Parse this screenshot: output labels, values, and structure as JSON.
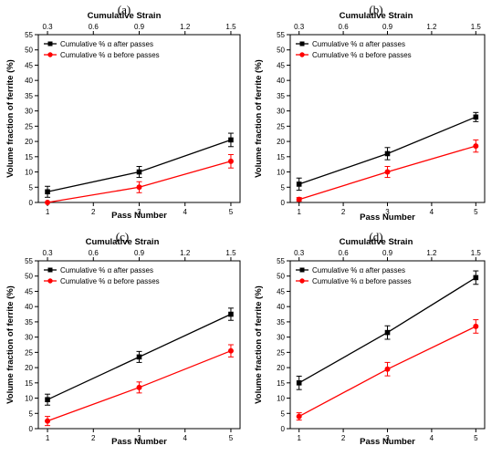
{
  "chart_data": [
    {
      "type": "line",
      "panel_label": "(a)",
      "x": [
        1,
        3,
        5
      ],
      "xlabel": "Pass Number",
      "xlim": [
        0.8,
        5.2
      ],
      "xticks": [
        1,
        2,
        3,
        4,
        5
      ],
      "top_axis": {
        "label": "Cumulative Strain",
        "ticks": [
          "0.3",
          "0.6",
          "0.9",
          "1.2",
          "1.5"
        ],
        "values": [
          0.3,
          0.6,
          0.9,
          1.2,
          1.5
        ]
      },
      "ylabel": "Volume fraction of ferrite (%)",
      "ylim": [
        0,
        55
      ],
      "yticks": [
        0,
        5,
        10,
        15,
        20,
        25,
        30,
        35,
        40,
        45,
        50,
        55
      ],
      "legend_position": "top-left",
      "series": [
        {
          "name": "Cumulative % α after passes",
          "color": "#000000",
          "values": [
            3.5,
            10,
            20.5
          ],
          "errors": [
            1.8,
            1.8,
            2.2
          ]
        },
        {
          "name": "Cumulative % α before passes",
          "color": "#ff0000",
          "values": [
            0,
            5,
            13.5
          ],
          "errors": [
            0,
            1.8,
            2.2
          ]
        }
      ]
    },
    {
      "type": "line",
      "panel_label": "(b)",
      "x": [
        1,
        3,
        5
      ],
      "xlabel": "Pass Number",
      "xlim": [
        0.8,
        5.2
      ],
      "xticks": [
        1,
        2,
        3,
        4,
        5
      ],
      "top_axis": {
        "label": "Cumulative Strain",
        "ticks": [
          "0.3",
          "0.6",
          "0.9",
          "1.2",
          "1.5"
        ],
        "values": [
          0.3,
          0.6,
          0.9,
          1.2,
          1.5
        ]
      },
      "ylabel": "Volume fraction of ferrite (%)",
      "ylim": [
        0,
        55
      ],
      "yticks": [
        0,
        5,
        10,
        15,
        20,
        25,
        30,
        35,
        40,
        45,
        50,
        55
      ],
      "legend_position": "top-left",
      "series": [
        {
          "name": "Cumulative % α after passes",
          "color": "#000000",
          "values": [
            6,
            16,
            28
          ],
          "errors": [
            2,
            2,
            1.5
          ]
        },
        {
          "name": "Cumulative % α before passes",
          "color": "#ff0000",
          "values": [
            1,
            10,
            18.5
          ],
          "errors": [
            0.6,
            1.8,
            2
          ]
        }
      ]
    },
    {
      "type": "line",
      "panel_label": "(c)",
      "x": [
        1,
        3,
        5
      ],
      "xlabel": "Pass Number",
      "xlim": [
        0.8,
        5.2
      ],
      "xticks": [
        1,
        2,
        3,
        4,
        5
      ],
      "top_axis": {
        "label": "Cumulative Strain",
        "ticks": [
          "0.3",
          "0.6",
          "0.9",
          "1.2",
          "1.5"
        ],
        "values": [
          0.3,
          0.6,
          0.9,
          1.2,
          1.5
        ]
      },
      "ylabel": "Volume fraction of ferrite (%)",
      "ylim": [
        0,
        55
      ],
      "yticks": [
        0,
        5,
        10,
        15,
        20,
        25,
        30,
        35,
        40,
        45,
        50,
        55
      ],
      "legend_position": "top-left",
      "series": [
        {
          "name": "Cumulative % α after passes",
          "color": "#000000",
          "values": [
            9.5,
            23.5,
            37.5
          ],
          "errors": [
            1.8,
            1.8,
            2
          ]
        },
        {
          "name": "Cumulative % α before passes",
          "color": "#ff0000",
          "values": [
            2.5,
            13.5,
            25.5
          ],
          "errors": [
            1.5,
            1.8,
            2
          ]
        }
      ]
    },
    {
      "type": "line",
      "panel_label": "(d)",
      "x": [
        1,
        3,
        5
      ],
      "xlabel": "Pass Number",
      "xlim": [
        0.8,
        5.2
      ],
      "xticks": [
        1,
        2,
        3,
        4,
        5
      ],
      "top_axis": {
        "label": "Cumulative Strain",
        "ticks": [
          "0.3",
          "0.6",
          "0.9",
          "1.2",
          "1.5"
        ],
        "values": [
          0.3,
          0.6,
          0.9,
          1.2,
          1.5
        ]
      },
      "ylabel": "Volume fraction of ferrite (%)",
      "ylim": [
        0,
        55
      ],
      "yticks": [
        0,
        5,
        10,
        15,
        20,
        25,
        30,
        35,
        40,
        45,
        50,
        55
      ],
      "legend_position": "top-left",
      "series": [
        {
          "name": "Cumulative % α after passes",
          "color": "#000000",
          "values": [
            15,
            31.5,
            49.5
          ],
          "errors": [
            2.2,
            2.2,
            2.2
          ]
        },
        {
          "name": "Cumulative % α before passes",
          "color": "#ff0000",
          "values": [
            4,
            19.5,
            33.5
          ],
          "errors": [
            1.2,
            2.2,
            2.2
          ]
        }
      ]
    }
  ]
}
